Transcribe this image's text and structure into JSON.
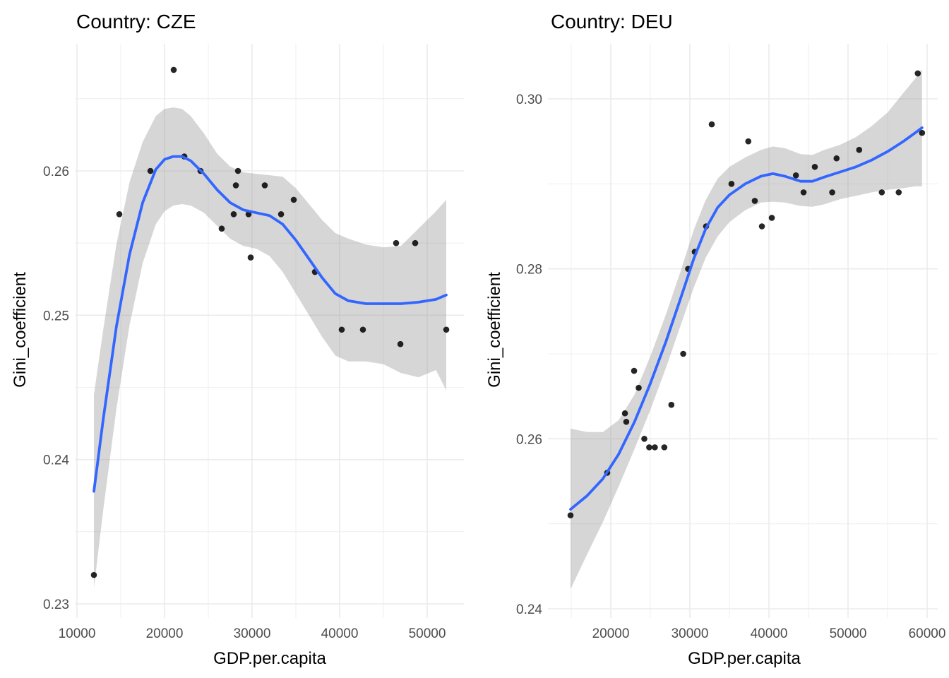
{
  "chart_data": [
    {
      "type": "scatter",
      "title": "Country: CZE",
      "xlabel": "GDP.per.capita",
      "ylabel": "Gini_coefficient",
      "xlim": [
        10000,
        53000
      ],
      "ylim": [
        0.23,
        0.2705
      ],
      "xticks": [
        10000,
        20000,
        30000,
        40000,
        50000
      ],
      "xtick_labels": [
        "10000",
        "20000",
        "30000",
        "40000",
        "50000"
      ],
      "yticks": [
        0.23,
        0.24,
        0.25,
        0.26
      ],
      "ytick_labels": [
        "0.23",
        "0.24",
        "0.25",
        "0.26"
      ],
      "grid": true,
      "points": {
        "x": [
          11935,
          14840,
          18390,
          21050,
          22260,
          24110,
          26530,
          27900,
          28150,
          28390,
          29600,
          29840,
          31450,
          33310,
          34760,
          37180,
          40240,
          42660,
          46450,
          46940,
          48630,
          52180
        ],
        "y": [
          0.232,
          0.257,
          0.26,
          0.267,
          0.261,
          0.26,
          0.256,
          0.257,
          0.259,
          0.26,
          0.257,
          0.254,
          0.259,
          0.257,
          0.258,
          0.253,
          0.249,
          0.249,
          0.255,
          0.248,
          0.255,
          0.249
        ]
      },
      "smooth": {
        "method": "loess",
        "color": "#3366ff",
        "x": [
          11935,
          13000,
          14500,
          16000,
          17500,
          19000,
          20000,
          21000,
          22000,
          23000,
          24500,
          26000,
          27500,
          29000,
          30500,
          32000,
          33500,
          35000,
          36500,
          38000,
          39500,
          41000,
          43000,
          45000,
          47000,
          49000,
          51000,
          52180
        ],
        "y": [
          0.2378,
          0.2428,
          0.2492,
          0.2542,
          0.2578,
          0.2601,
          0.2608,
          0.261,
          0.261,
          0.2607,
          0.2598,
          0.2587,
          0.2578,
          0.2573,
          0.2571,
          0.2569,
          0.2563,
          0.2552,
          0.2539,
          0.2526,
          0.2515,
          0.251,
          0.2508,
          0.2508,
          0.2508,
          0.2509,
          0.2511,
          0.2514
        ],
        "lower": [
          0.2311,
          0.2365,
          0.2435,
          0.2493,
          0.2536,
          0.2563,
          0.2572,
          0.2576,
          0.2577,
          0.2576,
          0.2571,
          0.2562,
          0.2553,
          0.2548,
          0.2546,
          0.2541,
          0.253,
          0.2515,
          0.25,
          0.2485,
          0.2472,
          0.2468,
          0.2468,
          0.2466,
          0.246,
          0.2457,
          0.2462,
          0.2448
        ],
        "upper": [
          0.2445,
          0.249,
          0.2549,
          0.2592,
          0.262,
          0.2638,
          0.2643,
          0.2644,
          0.2643,
          0.2638,
          0.2626,
          0.2612,
          0.2603,
          0.2599,
          0.2598,
          0.2597,
          0.2596,
          0.2588,
          0.2577,
          0.2566,
          0.2557,
          0.2553,
          0.2549,
          0.2547,
          0.2548,
          0.256,
          0.2572,
          0.258
        ]
      }
    },
    {
      "type": "scatter",
      "title": "Country: DEU",
      "xlabel": "GDP.per.capita",
      "ylabel": "Gini_coefficient",
      "xlim": [
        13400,
        61300
      ],
      "ylim": [
        0.24,
        0.305
      ],
      "xticks": [
        20000,
        30000,
        40000,
        50000,
        60000
      ],
      "xtick_labels": [
        "20000",
        "30000",
        "40000",
        "50000",
        "60000"
      ],
      "yticks": [
        0.24,
        0.26,
        0.28,
        0.3
      ],
      "ytick_labels": [
        "0.24",
        "0.26",
        "0.28",
        "0.30"
      ],
      "grid": true,
      "points": {
        "x": [
          14910,
          19550,
          21790,
          21960,
          22950,
          23530,
          24240,
          24860,
          25570,
          26770,
          27660,
          29160,
          29780,
          30620,
          32050,
          32770,
          35260,
          37390,
          38210,
          39110,
          40360,
          43410,
          44380,
          45800,
          48000,
          48550,
          51410,
          54270,
          56410,
          58820,
          59360
        ],
        "y": [
          0.251,
          0.256,
          0.263,
          0.262,
          0.268,
          0.266,
          0.26,
          0.259,
          0.259,
          0.259,
          0.264,
          0.27,
          0.28,
          0.282,
          0.285,
          0.297,
          0.29,
          0.295,
          0.288,
          0.285,
          0.286,
          0.291,
          0.289,
          0.292,
          0.289,
          0.293,
          0.294,
          0.289,
          0.289,
          0.303,
          0.296
        ]
      },
      "smooth": {
        "method": "loess",
        "color": "#3366ff",
        "x": [
          14910,
          17000,
          19000,
          21000,
          23000,
          25000,
          27000,
          29000,
          30500,
          32000,
          33500,
          35000,
          37000,
          39000,
          40500,
          42000,
          44000,
          45500,
          47000,
          49000,
          51000,
          53000,
          55000,
          57000,
          58500,
          59360
        ],
        "y": [
          0.2517,
          0.2533,
          0.2553,
          0.2582,
          0.262,
          0.2665,
          0.2715,
          0.277,
          0.2812,
          0.2847,
          0.2872,
          0.2887,
          0.29,
          0.2909,
          0.2912,
          0.2909,
          0.2903,
          0.2903,
          0.2908,
          0.2914,
          0.292,
          0.2928,
          0.2938,
          0.295,
          0.296,
          0.2966
        ],
        "lower": [
          0.2423,
          0.2464,
          0.2502,
          0.2544,
          0.2588,
          0.2634,
          0.2684,
          0.2738,
          0.2778,
          0.2813,
          0.2838,
          0.2855,
          0.2869,
          0.2878,
          0.2879,
          0.2878,
          0.2874,
          0.2873,
          0.2876,
          0.2882,
          0.2886,
          0.289,
          0.2893,
          0.2895,
          0.2897,
          0.2897
        ],
        "upper": [
          0.2612,
          0.2608,
          0.2608,
          0.2622,
          0.2652,
          0.2697,
          0.2747,
          0.2802,
          0.2846,
          0.2881,
          0.2906,
          0.292,
          0.2931,
          0.294,
          0.2944,
          0.2942,
          0.2935,
          0.2934,
          0.294,
          0.2946,
          0.2955,
          0.2968,
          0.2984,
          0.3007,
          0.3024,
          0.3035
        ]
      }
    }
  ]
}
